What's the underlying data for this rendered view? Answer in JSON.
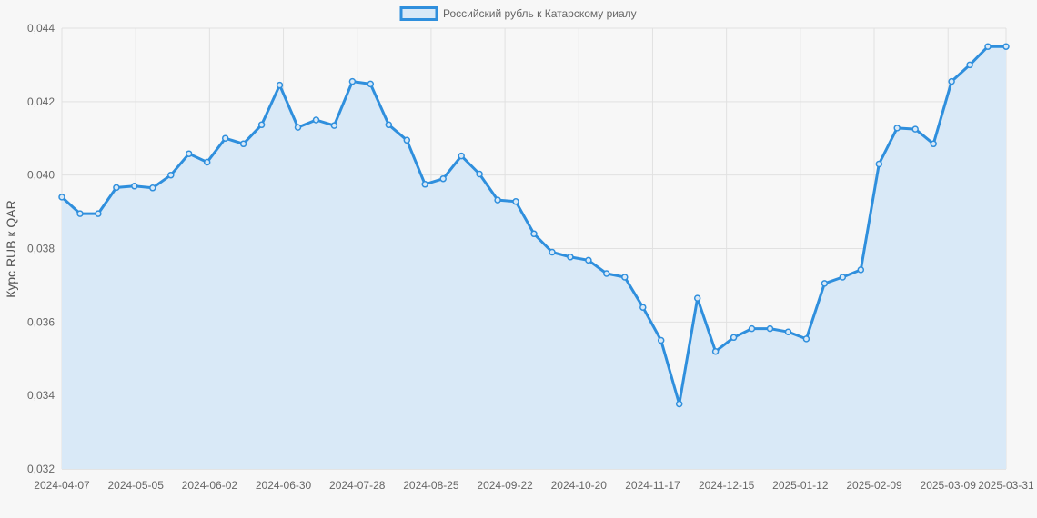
{
  "chart_data": {
    "type": "area",
    "title": "",
    "legend": {
      "position": "top-center",
      "items": [
        "Российский рубль к Катарскому риалу"
      ]
    },
    "series": [
      {
        "name": "Российский рубль к Катарскому риалу",
        "color": "#2f8fdd",
        "fill": "#d9e9f7",
        "values": [
          0.0394,
          0.03895,
          0.03895,
          0.03966,
          0.0397,
          0.03965,
          0.04,
          0.04058,
          0.04035,
          0.041,
          0.04085,
          0.04137,
          0.04245,
          0.0413,
          0.0415,
          0.04135,
          0.04255,
          0.04248,
          0.04137,
          0.04095,
          0.03975,
          0.0399,
          0.04052,
          0.04003,
          0.03932,
          0.03928,
          0.0384,
          0.0379,
          0.03777,
          0.03768,
          0.03732,
          0.03722,
          0.0364,
          0.0355,
          0.03377,
          0.03665,
          0.0352,
          0.03558,
          0.03582,
          0.03582,
          0.03573,
          0.03554,
          0.03705,
          0.03722,
          0.03742,
          0.0403,
          0.04128,
          0.04125,
          0.04085,
          0.04255,
          0.043,
          0.0435,
          0.0435
        ]
      }
    ],
    "x_start": "2024-04-07",
    "x_end": "2025-03-31",
    "x_ticks": [
      "2024-04-07",
      "2024-05-05",
      "2024-06-02",
      "2024-06-30",
      "2024-07-28",
      "2024-08-25",
      "2024-09-22",
      "2024-10-20",
      "2024-11-17",
      "2024-12-15",
      "2025-01-12",
      "2025-02-09",
      "2025-03-09",
      "2025-03-31"
    ],
    "y_ticks": [
      "0,032",
      "0,034",
      "0,036",
      "0,038",
      "0,040",
      "0,042",
      "0,044"
    ],
    "ylim": [
      0.032,
      0.044
    ],
    "ylabel": "Курс RUB к QAR",
    "xlabel": "",
    "grid": true
  }
}
